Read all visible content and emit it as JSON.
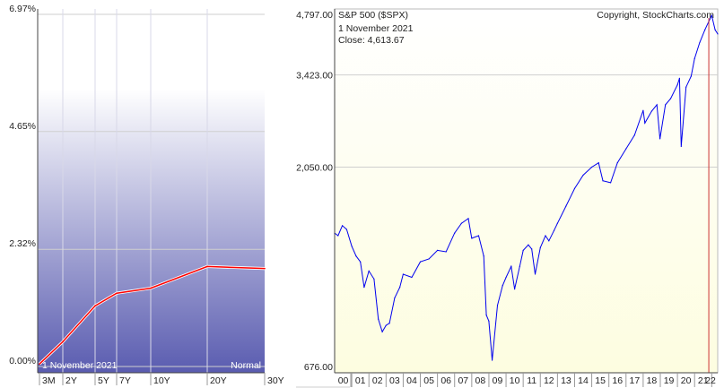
{
  "chart_data": [
    {
      "type": "line",
      "panel": "yield-curve",
      "x": [
        "3M",
        "2Y",
        "5Y",
        "7Y",
        "10Y",
        "20Y",
        "30Y"
      ],
      "x_years": [
        0.25,
        2,
        5,
        7,
        10,
        20,
        30
      ],
      "values": [
        0.05,
        0.49,
        1.2,
        1.45,
        1.55,
        1.98,
        1.94
      ],
      "y_ticks": [
        "6.97%",
        "4.65%",
        "2.32%",
        "0.00%"
      ],
      "y_tick_values": [
        6.97,
        4.65,
        2.32,
        0.0
      ],
      "ylim": [
        0,
        6.97
      ],
      "date_label": "1  November 2021",
      "shape_label": "Normal",
      "line_color": "#ff0000",
      "gradient_colors": [
        "#ffffff",
        "#5a5cb0"
      ],
      "grid": true
    },
    {
      "type": "line",
      "panel": "sp500",
      "title": "S&P 500 ($SPX)",
      "copyright": "Copyright, StockCharts.com",
      "date_label": "1  November 2021",
      "close_label": "Close: 4,613.67",
      "y_scale": "log",
      "ylim": [
        676,
        4797
      ],
      "y_ticks": [
        "4,797.00",
        "3,423.00",
        "2,050.00",
        "676.00"
      ],
      "y_tick_values": [
        4797,
        3423,
        2050,
        676
      ],
      "x_ticks": [
        "00",
        "01",
        "02",
        "03",
        "04",
        "05",
        "06",
        "07",
        "08",
        "09",
        "10",
        "11",
        "12",
        "13",
        "14",
        "15",
        "16",
        "17",
        "18",
        "19",
        "20",
        "21",
        "22"
      ],
      "x_range": [
        2000.0,
        2022.35
      ],
      "marker_date": 2021.83,
      "series": [
        {
          "x": [
            2000.0,
            2000.2,
            2000.45,
            2000.7,
            2001.0,
            2001.25,
            2001.5,
            2001.72,
            2002.0,
            2002.3,
            2002.55,
            2002.78,
            2003.0,
            2003.2,
            2003.5,
            2003.8,
            2004.0,
            2004.5,
            2005.0,
            2005.5,
            2006.0,
            2006.5,
            2007.0,
            2007.4,
            2007.8,
            2008.0,
            2008.4,
            2008.7,
            2008.85,
            2009.0,
            2009.19,
            2009.5,
            2009.8,
            2010.0,
            2010.3,
            2010.5,
            2010.8,
            2011.0,
            2011.3,
            2011.5,
            2011.7,
            2012.0,
            2012.3,
            2012.5,
            2012.8,
            2013.0,
            2013.5,
            2014.0,
            2014.5,
            2015.0,
            2015.4,
            2015.65,
            2016.1,
            2016.5,
            2017.0,
            2017.5,
            2018.0,
            2018.1,
            2018.5,
            2018.8,
            2018.98,
            2019.3,
            2019.6,
            2020.0,
            2020.12,
            2020.22,
            2020.5,
            2020.8,
            2021.0,
            2021.3,
            2021.6,
            2021.83,
            2022.0,
            2022.2,
            2022.35
          ],
          "y": [
            1420,
            1400,
            1480,
            1450,
            1320,
            1250,
            1210,
            1050,
            1150,
            1100,
            880,
            820,
            850,
            860,
            990,
            1050,
            1130,
            1110,
            1210,
            1230,
            1290,
            1280,
            1420,
            1500,
            1540,
            1380,
            1400,
            1250,
            900,
            870,
            700,
            950,
            1060,
            1110,
            1180,
            1040,
            1180,
            1290,
            1330,
            1300,
            1130,
            1310,
            1400,
            1360,
            1440,
            1500,
            1650,
            1820,
            1960,
            2050,
            2100,
            1900,
            1880,
            2100,
            2270,
            2450,
            2810,
            2620,
            2800,
            2900,
            2400,
            2900,
            3000,
            3240,
            3360,
            2300,
            3200,
            3400,
            3750,
            4100,
            4400,
            4614,
            4766,
            4400,
            4300
          ],
          "color": "#0000ee"
        }
      ],
      "marker_color": "#cc3333",
      "background": [
        "#ffffff",
        "#fdfde0"
      ],
      "grid": true
    }
  ]
}
